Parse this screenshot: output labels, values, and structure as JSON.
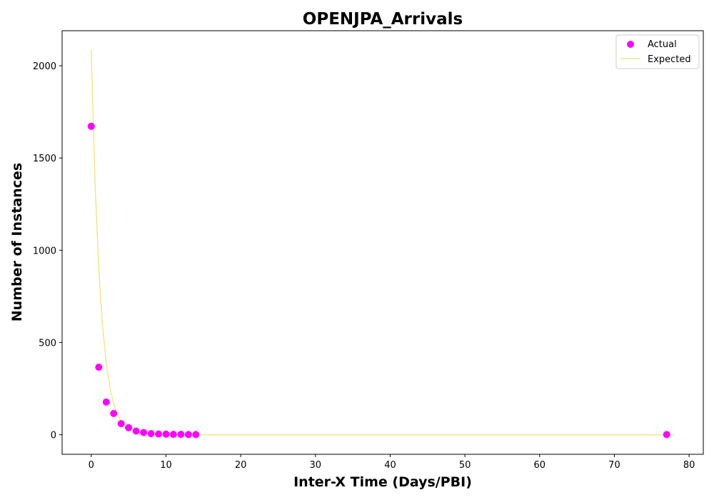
{
  "chart_data": {
    "type": "scatter",
    "title": "OPENJPA_Arrivals",
    "xlabel": "Inter-X Time (Days/PBI)",
    "ylabel": "Number of Instances",
    "xlim": [
      -3.9,
      81.9
    ],
    "ylim": [
      -106,
      2190
    ],
    "xticks": [
      0,
      10,
      20,
      30,
      40,
      50,
      60,
      70,
      80
    ],
    "yticks": [
      0,
      500,
      1000,
      1500,
      2000
    ],
    "grid": false,
    "legend": "top-right",
    "series": [
      {
        "name": "Actual",
        "kind": "scatter",
        "color": "#ff00ff",
        "x": [
          0,
          1,
          2,
          3,
          4,
          5,
          6,
          7,
          8,
          9,
          10,
          11,
          12,
          13,
          14,
          77
        ],
        "y": [
          1672,
          366,
          177,
          115,
          60,
          38,
          20,
          12,
          6,
          4,
          3,
          2,
          2,
          1,
          1,
          1
        ]
      },
      {
        "name": "Expected",
        "kind": "line",
        "color": "#f0e68c",
        "x": [
          0,
          0.5,
          1,
          1.5,
          2,
          2.5,
          3,
          3.5,
          4,
          4.5,
          5,
          5.5,
          6,
          6.5,
          7,
          7.5,
          8,
          9,
          10,
          11,
          12,
          13,
          14,
          16,
          20,
          30,
          40,
          50,
          60,
          70,
          78
        ],
        "y": [
          2085,
          1370,
          900,
          592,
          389,
          256,
          168,
          110,
          72,
          48,
          31,
          21,
          14,
          9,
          6,
          4,
          3,
          1,
          0.5,
          0.2,
          0.1,
          0,
          0,
          0,
          0,
          0,
          0,
          0,
          0,
          0,
          0
        ]
      }
    ]
  }
}
